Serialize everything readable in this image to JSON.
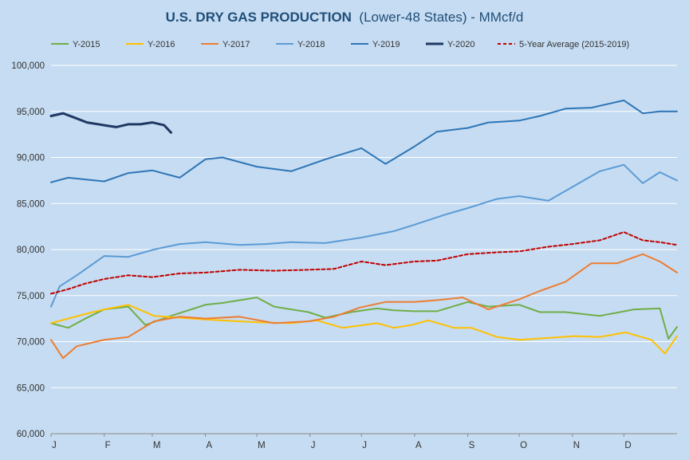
{
  "colors": {
    "background": "#c6dcf2",
    "grid": "#ffffff",
    "title": "#1f4e79"
  },
  "chart_data": {
    "type": "line",
    "title": "U.S. DRY GAS PRODUCTION",
    "subtitle": "(Lower-48 States) - MMcf/d",
    "xlabel": "",
    "ylabel": "",
    "ylim": [
      60000,
      100000
    ],
    "xlim": [
      0,
      365
    ],
    "grid": "horizontal",
    "legend_position": "top",
    "y_ticks": [
      "60,000",
      "65,000",
      "70,000",
      "75,000",
      "80,000",
      "85,000",
      "90,000",
      "95,000",
      "100,000"
    ],
    "x_tick_labels": [
      "J",
      "F",
      "M",
      "A",
      "M",
      "J",
      "J",
      "A",
      "S",
      "O",
      "N",
      "D"
    ],
    "x_tick_days": [
      0,
      31,
      59,
      90,
      120,
      151,
      181,
      212,
      243,
      273,
      304,
      334
    ],
    "series": [
      {
        "name": "Y-2015",
        "color": "#70ad47",
        "style": "solid",
        "x": [
          0,
          10,
          20,
          31,
          45,
          55,
          70,
          90,
          100,
          120,
          130,
          150,
          160,
          175,
          190,
          200,
          212,
          225,
          243,
          255,
          273,
          285,
          300,
          320,
          340,
          355,
          360,
          365
        ],
        "y": [
          72000,
          71500,
          72500,
          73500,
          73800,
          71800,
          72800,
          74000,
          74200,
          74800,
          73800,
          73200,
          72600,
          73200,
          73600,
          73400,
          73300,
          73300,
          74300,
          73800,
          74000,
          73200,
          73200,
          72800,
          73500,
          73600,
          70300,
          71600
        ]
      },
      {
        "name": "Y-2016",
        "color": "#ffc000",
        "style": "solid",
        "x": [
          0,
          20,
          31,
          45,
          60,
          75,
          90,
          120,
          140,
          155,
          170,
          190,
          200,
          210,
          220,
          235,
          245,
          260,
          273,
          290,
          305,
          320,
          335,
          350,
          358,
          365
        ],
        "y": [
          72000,
          73000,
          73500,
          74000,
          72800,
          72600,
          72400,
          72100,
          72000,
          72300,
          71500,
          72000,
          71500,
          71800,
          72300,
          71500,
          71500,
          70500,
          70200,
          70400,
          70600,
          70500,
          71000,
          70200,
          68700,
          70600
        ]
      },
      {
        "name": "Y-2017",
        "color": "#ed7d31",
        "style": "solid",
        "x": [
          0,
          7,
          15,
          31,
          45,
          60,
          75,
          90,
          110,
          130,
          150,
          165,
          180,
          195,
          212,
          225,
          240,
          255,
          273,
          285,
          300,
          315,
          330,
          345,
          355,
          365
        ],
        "y": [
          70200,
          68200,
          69500,
          70200,
          70500,
          72200,
          72700,
          72500,
          72700,
          72000,
          72200,
          72700,
          73700,
          74300,
          74300,
          74500,
          74800,
          73500,
          74600,
          75500,
          76500,
          78500,
          78500,
          79500,
          78700,
          77500
        ]
      },
      {
        "name": "Y-2018",
        "color": "#5b9bd5",
        "style": "solid",
        "x": [
          0,
          5,
          15,
          31,
          45,
          60,
          75,
          90,
          110,
          125,
          140,
          160,
          181,
          200,
          212,
          230,
          243,
          260,
          273,
          290,
          304,
          320,
          334,
          345,
          355,
          365
        ],
        "y": [
          73800,
          76000,
          77200,
          79300,
          79200,
          80000,
          80600,
          80800,
          80500,
          80600,
          80800,
          80700,
          81300,
          82000,
          82700,
          83800,
          84500,
          85500,
          85800,
          85300,
          86800,
          88500,
          89200,
          87200,
          88400,
          87500
        ]
      },
      {
        "name": "Y-2019",
        "color": "#2e75b6",
        "style": "solid",
        "x": [
          0,
          10,
          31,
          45,
          59,
          75,
          90,
          100,
          120,
          140,
          160,
          181,
          195,
          212,
          225,
          243,
          255,
          273,
          285,
          300,
          315,
          334,
          345,
          355,
          365
        ],
        "y": [
          87300,
          87800,
          87400,
          88300,
          88600,
          87800,
          89800,
          90000,
          89000,
          88500,
          89800,
          91000,
          89300,
          91200,
          92800,
          93200,
          93800,
          94000,
          94500,
          95300,
          95400,
          96200,
          94800,
          95000,
          95000
        ]
      },
      {
        "name": "Y-2020",
        "color": "#1f3864",
        "style": "bold",
        "x": [
          0,
          7,
          14,
          21,
          31,
          38,
          45,
          52,
          59,
          66,
          70
        ],
        "y": [
          94500,
          94800,
          94300,
          93800,
          93500,
          93300,
          93600,
          93600,
          93800,
          93500,
          92700
        ]
      },
      {
        "name": "5-Year Average (2015-2019)",
        "color": "#c00000",
        "style": "dashed",
        "x": [
          0,
          10,
          20,
          31,
          45,
          59,
          75,
          90,
          110,
          130,
          150,
          165,
          181,
          195,
          212,
          225,
          243,
          260,
          273,
          290,
          304,
          320,
          334,
          345,
          355,
          365
        ],
        "y": [
          75200,
          75700,
          76300,
          76800,
          77200,
          77000,
          77400,
          77500,
          77800,
          77700,
          77800,
          77900,
          78700,
          78300,
          78700,
          78800,
          79500,
          79700,
          79800,
          80300,
          80600,
          81000,
          81900,
          81000,
          80800,
          80500
        ]
      }
    ]
  }
}
